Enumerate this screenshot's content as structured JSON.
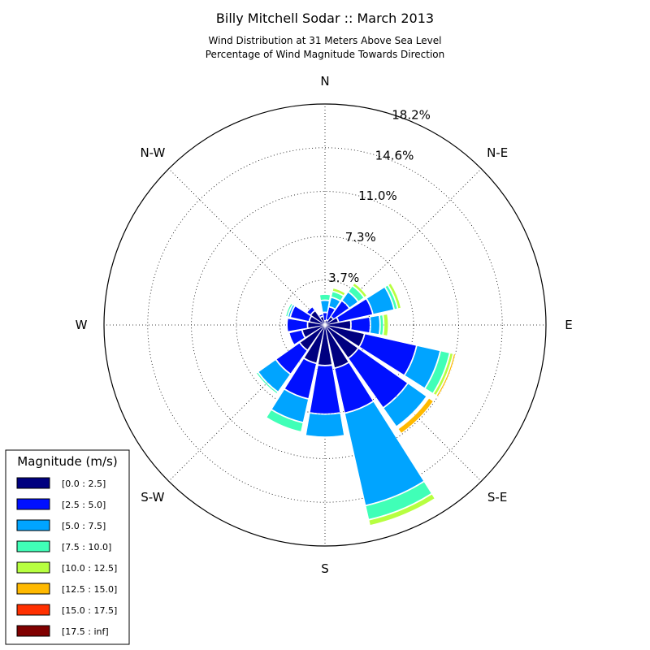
{
  "chart_data": {
    "type": "windrose",
    "title": "Billy Mitchell Sodar :: March 2013",
    "subtitle_lines": [
      "Wind Distribution at 31 Meters Above Sea Level",
      "Percentage of Wind Magnitude Towards Direction"
    ],
    "direction_labels": [
      "N",
      "N-E",
      "E",
      "S-E",
      "S",
      "S-W",
      "W",
      "N-W"
    ],
    "radial_ticks": [
      3.7,
      7.3,
      11.0,
      14.6,
      18.2
    ],
    "radial_tick_labels": [
      "3.7%",
      "7.3%",
      "11.0%",
      "14.6%",
      "18.2%"
    ],
    "r_max": 18.2,
    "grid": true,
    "legend": {
      "title": "Magnitude (m/s)",
      "placement": "bottom-left",
      "bins": [
        {
          "label": "[0.0 : 2.5]",
          "color": "#000080"
        },
        {
          "label": "[2.5 : 5.0]",
          "color": "#0010ff"
        },
        {
          "label": "[5.0 : 7.5]",
          "color": "#00a4ff"
        },
        {
          "label": "[7.5 : 10.0]",
          "color": "#40ffb7"
        },
        {
          "label": "[10.0 : 12.5]",
          "color": "#b7ff40"
        },
        {
          "label": "[12.5 : 15.0]",
          "color": "#ffb900"
        },
        {
          "label": "[15.0 : 17.5]",
          "color": "#ff3000"
        },
        {
          "label": "[17.5 : inf]",
          "color": "#800000"
        }
      ]
    },
    "direction_sectors_deg": [
      0,
      22.5,
      45,
      67.5,
      90,
      112.5,
      135,
      157.5,
      180,
      202.5,
      225,
      247.5,
      270,
      292.5,
      315,
      337.5
    ],
    "cumulative_percent_by_direction": [
      [
        0.0,
        0.3,
        1.0,
        2.0,
        2.5,
        2.55,
        2.55,
        2.55
      ],
      [
        0.0,
        0.4,
        1.5,
        2.3,
        2.8,
        3.1,
        3.1,
        3.1
      ],
      [
        0.0,
        0.8,
        2.4,
        3.3,
        3.9,
        4.2,
        4.2,
        4.2
      ],
      [
        0.0,
        1.1,
        4.0,
        5.8,
        6.1,
        6.4,
        6.5,
        6.5
      ],
      [
        0.0,
        2.1,
        3.7,
        4.5,
        4.8,
        5.2,
        5.3,
        5.3
      ],
      [
        0.0,
        3.3,
        7.7,
        9.7,
        10.5,
        10.8,
        11.0,
        11.0
      ],
      [
        0.0,
        3.3,
        8.3,
        10.2,
        10.3,
        10.4,
        10.9,
        10.9
      ],
      [
        0.0,
        3.6,
        7.4,
        15.2,
        16.4,
        16.9,
        16.9,
        16.9
      ],
      [
        0.0,
        3.3,
        7.3,
        9.2,
        9.2,
        9.2,
        9.2,
        9.2
      ],
      [
        0.0,
        3.2,
        6.2,
        8.2,
        9.0,
        9.1,
        9.1,
        9.1
      ],
      [
        0.0,
        2.5,
        4.9,
        6.7,
        6.9,
        6.9,
        6.9,
        6.9
      ],
      [
        0.0,
        1.9,
        3.0,
        3.0,
        3.0,
        3.0,
        3.0,
        3.0
      ],
      [
        0.0,
        1.4,
        3.1,
        3.1,
        3.1,
        3.1,
        3.1,
        3.1
      ],
      [
        0.0,
        1.3,
        2.9,
        3.1,
        3.3,
        3.3,
        3.3,
        3.3
      ],
      [
        0.0,
        1.4,
        1.8,
        1.8,
        1.8,
        1.8,
        1.8,
        1.8
      ],
      [
        0.0,
        0.7,
        0.9,
        0.9,
        0.9,
        0.9,
        0.9,
        0.9
      ]
    ]
  }
}
